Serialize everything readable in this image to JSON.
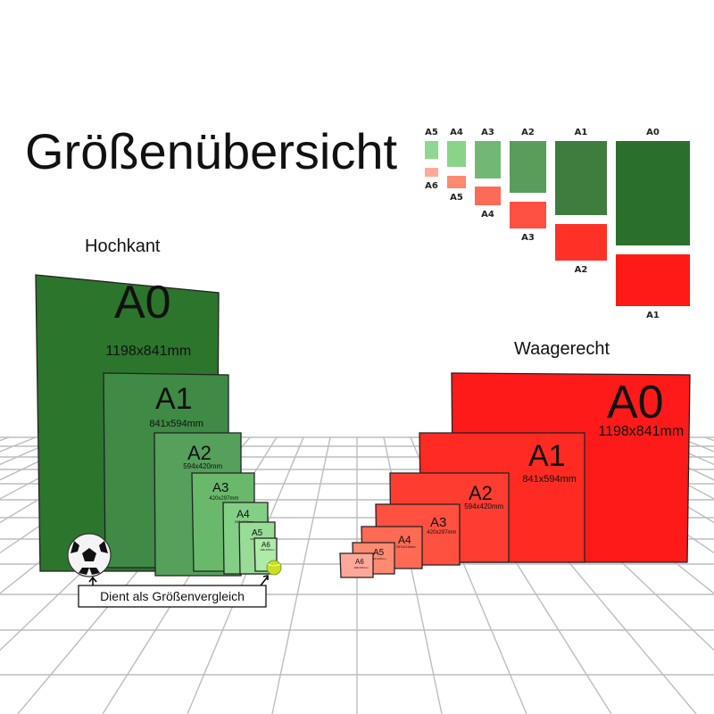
{
  "title": "Größenübersicht",
  "portrait": {
    "heading": "Hochkant",
    "color_dark": "#2e7a2e",
    "sheets": [
      {
        "name": "A0",
        "size": "1198x841mm",
        "color": "#2c752c"
      },
      {
        "name": "A1",
        "size": "841x594mm",
        "color": "#3f8a45"
      },
      {
        "name": "A2",
        "size": "594x420mm",
        "color": "#55a05a"
      },
      {
        "name": "A3",
        "size": "420x297mm",
        "color": "#6ab86c"
      },
      {
        "name": "A4",
        "size": "297x210mm",
        "color": "#84cf86"
      },
      {
        "name": "A5",
        "size": "210x148mm",
        "color": "#98dc98"
      },
      {
        "name": "A6",
        "size": "148x105mm",
        "color": "#aeeaa8"
      }
    ]
  },
  "landscape": {
    "heading": "Waagerecht",
    "sheets": [
      {
        "name": "A0",
        "size": "1198x841mm",
        "color": "#ff1a1a"
      },
      {
        "name": "A1",
        "size": "841x594mm",
        "color": "#ff2a22"
      },
      {
        "name": "A2",
        "size": "594x420mm",
        "color": "#ff3c30"
      },
      {
        "name": "A3",
        "size": "420x297mm",
        "color": "#ff5040"
      },
      {
        "name": "A4",
        "size": "297x210mm",
        "color": "#ff6a55"
      },
      {
        "name": "A5",
        "size": "210x148mm",
        "color": "#ff8a70"
      },
      {
        "name": "A6",
        "size": "148x105mm",
        "color": "#ffa898"
      }
    ]
  },
  "comparison_label": "Dient als Größenvergleich",
  "legend": {
    "portrait": [
      {
        "name": "A5",
        "color": "#8fd88f"
      },
      {
        "name": "A4",
        "color": "#8ad48a"
      },
      {
        "name": "A3",
        "color": "#72b872"
      },
      {
        "name": "A2",
        "color": "#5a9c5a"
      },
      {
        "name": "A1",
        "color": "#3f7d3f"
      },
      {
        "name": "A0",
        "color": "#2a702a"
      }
    ],
    "landscape": [
      {
        "name": "A6",
        "color": "#ffaa9c"
      },
      {
        "name": "A5",
        "color": "#ff8a70"
      },
      {
        "name": "A4",
        "color": "#ff6a58"
      },
      {
        "name": "A3",
        "color": "#ff5044"
      },
      {
        "name": "A2",
        "color": "#ff3228"
      },
      {
        "name": "A1",
        "color": "#ff1a16"
      }
    ]
  }
}
